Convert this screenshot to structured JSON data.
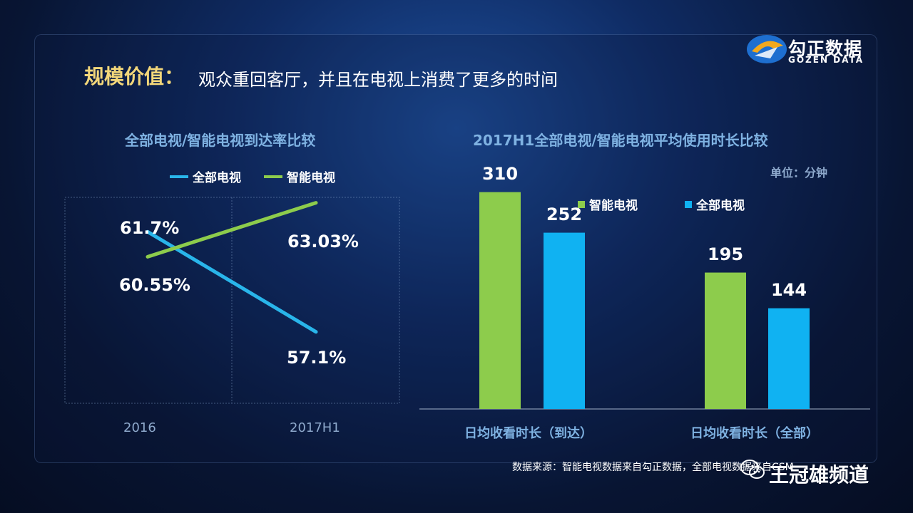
{
  "header": {
    "title": "规模价值：",
    "subtitle": "观众重回客厅，并且在电视上消费了更多的时间",
    "logo_text": "勾正数据",
    "logo_sub": "GOZEN DATA"
  },
  "chart_data": [
    {
      "type": "line",
      "title": "全部电视/智能电视到达率比较",
      "categories": [
        "2016",
        "2017H1"
      ],
      "series": [
        {
          "name": "全部电视",
          "values": [
            61.7,
            57.1
          ],
          "labels": [
            "61.7%",
            "57.1%"
          ],
          "color": "#29b5ea"
        },
        {
          "name": "智能电视",
          "values": [
            60.55,
            63.03
          ],
          "labels": [
            "60.55%",
            "63.03%"
          ],
          "color": "#8dcc4c"
        }
      ],
      "ylim": [
        55,
        64
      ],
      "legend": "top"
    },
    {
      "type": "bar",
      "title": "2017H1全部电视/智能电视平均使用时长比较",
      "unit": "单位：分钟",
      "categories": [
        "日均收看时长（到达）",
        "日均收看时长（全部）"
      ],
      "series": [
        {
          "name": "智能电视",
          "values": [
            310,
            195
          ],
          "color": "#8dcc4c"
        },
        {
          "name": "全部电视",
          "values": [
            252,
            144
          ],
          "color": "#10b2f2"
        }
      ],
      "ylim": [
        0,
        330
      ],
      "legend": "top"
    }
  ],
  "footer": {
    "source": "数据来源：智能电视数据来自勾正数据，全部电视数据来自CSM",
    "watermark": "王冠雄频道"
  }
}
